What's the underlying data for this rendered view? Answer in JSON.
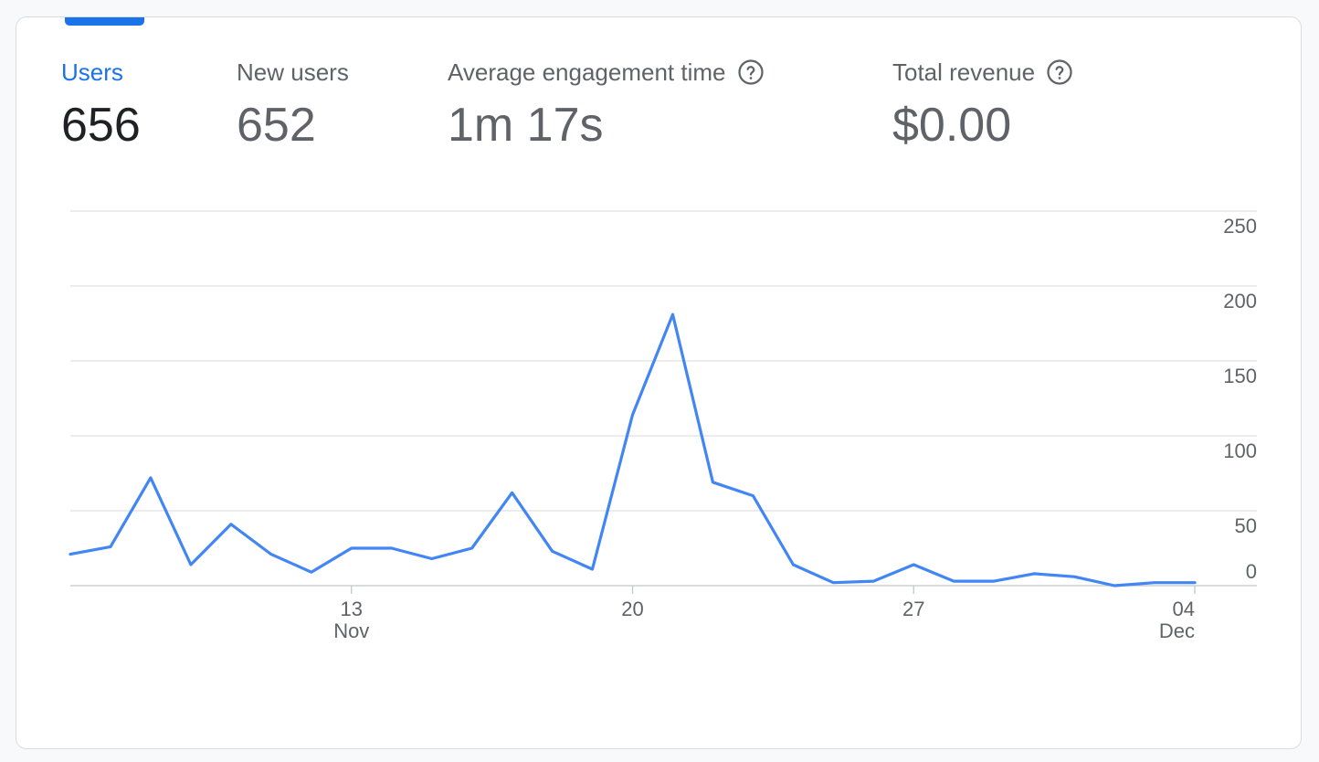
{
  "metrics": [
    {
      "label": "Users",
      "value": "656",
      "active": true,
      "help": false
    },
    {
      "label": "New users",
      "value": "652",
      "active": false,
      "help": false
    },
    {
      "label": "Average engagement time",
      "value": "1m 17s",
      "active": false,
      "help": true
    },
    {
      "label": "Total revenue",
      "value": "$0.00",
      "active": false,
      "help": true
    }
  ],
  "colors": {
    "accent": "#1a73e8",
    "line": "#4285f4",
    "grid": "#e0e0e0"
  },
  "chart_data": {
    "type": "line",
    "x": [
      "Nov 6",
      "Nov 7",
      "Nov 8",
      "Nov 9",
      "Nov 10",
      "Nov 11",
      "Nov 12",
      "Nov 13",
      "Nov 14",
      "Nov 15",
      "Nov 16",
      "Nov 17",
      "Nov 18",
      "Nov 19",
      "Nov 20",
      "Nov 21",
      "Nov 22",
      "Nov 23",
      "Nov 24",
      "Nov 25",
      "Nov 26",
      "Nov 27",
      "Nov 28",
      "Nov 29",
      "Nov 30",
      "Dec 1",
      "Dec 2",
      "Dec 3",
      "Dec 4"
    ],
    "series": [
      {
        "values": [
          21,
          26,
          72,
          14,
          41,
          21,
          9,
          25,
          25,
          18,
          25,
          62,
          23,
          11,
          114,
          181,
          69,
          60,
          14,
          2,
          3,
          14,
          3,
          3,
          8,
          6,
          0,
          2,
          2
        ]
      }
    ],
    "ylim": [
      0,
      250
    ],
    "yticks": [
      "0",
      "50",
      "100",
      "150",
      "200",
      "250"
    ],
    "xticks": [
      {
        "index": 7,
        "day": "13",
        "month": "Nov"
      },
      {
        "index": 14,
        "day": "20",
        "month": ""
      },
      {
        "index": 21,
        "day": "27",
        "month": ""
      },
      {
        "index": 28,
        "day": "04",
        "month": "Dec"
      }
    ],
    "grid": true
  }
}
